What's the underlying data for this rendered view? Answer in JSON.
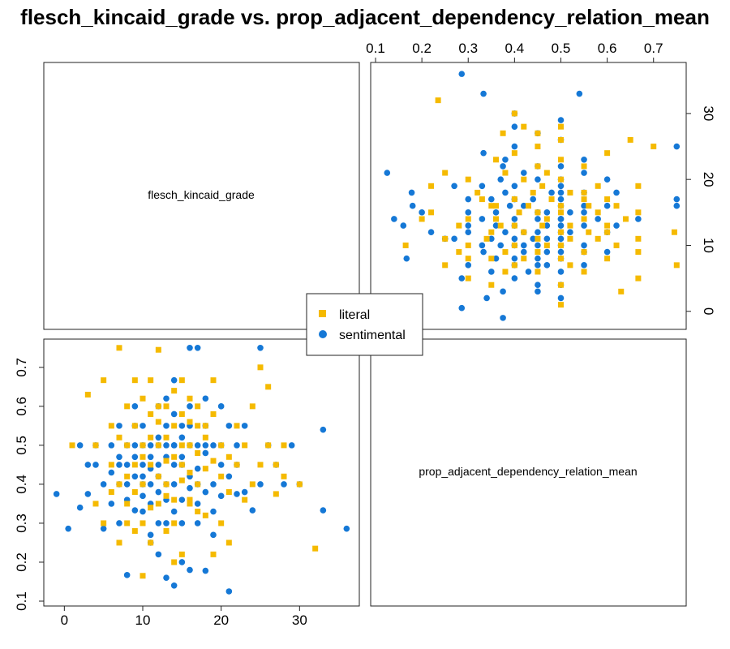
{
  "title": "flesch_kincaid_grade vs. prop_adjacent_dependency_relation_mean",
  "colors": {
    "literal": "#F5BA00",
    "sentimental": "#1578D6",
    "axis": "#222222"
  },
  "legend": {
    "items": [
      {
        "label": "literal",
        "marker": "square-marker",
        "color": "#F5BA00"
      },
      {
        "label": "sentimental",
        "marker": "circle-marker",
        "color": "#1578D6"
      }
    ]
  },
  "panels": {
    "diag1_label": "flesch_kincaid_grade",
    "diag2_label": "prop_adjacent_dependency_relation_mean"
  },
  "chart_data": {
    "type": "scatter",
    "title": "flesch_kincaid_grade vs. prop_adjacent_dependency_relation_mean",
    "variables": [
      "flesch_kincaid_grade",
      "prop_adjacent_dependency_relation_mean"
    ],
    "ranges": {
      "flesch_kincaid_grade": [
        -2,
        37
      ],
      "prop_adjacent_dependency_relation_mean": [
        0.1,
        0.76
      ]
    },
    "ticks": {
      "flesch_kincaid_grade": [
        0,
        10,
        20,
        30
      ],
      "prop_adjacent_dependency_relation_mean": [
        0.1,
        0.2,
        0.3,
        0.4,
        0.5,
        0.6,
        0.7
      ]
    },
    "grid": false,
    "legend_position": "center",
    "series": [
      {
        "name": "literal",
        "marker": "square",
        "points": [
          [
            32,
            0.235
          ],
          [
            30,
            0.4
          ],
          [
            28,
            0.5
          ],
          [
            27,
            0.375
          ],
          [
            27,
            0.45
          ],
          [
            26,
            0.65
          ],
          [
            25,
            0.7
          ],
          [
            24,
            0.6
          ],
          [
            23,
            0.5
          ],
          [
            22,
            0.45
          ],
          [
            21,
            0.25
          ],
          [
            20,
            0.3
          ],
          [
            19,
            0.667
          ],
          [
            19,
            0.22
          ],
          [
            18,
            0.55
          ],
          [
            17,
            0.6
          ],
          [
            17,
            0.4
          ],
          [
            16,
            0.35
          ],
          [
            16,
            0.5
          ],
          [
            15,
            0.45
          ],
          [
            15,
            0.667
          ],
          [
            14,
            0.55
          ],
          [
            14,
            0.3
          ],
          [
            13,
            0.4
          ],
          [
            13,
            0.6
          ],
          [
            12,
            0.5
          ],
          [
            12,
            0.35
          ],
          [
            11,
            0.45
          ],
          [
            11,
            0.667
          ],
          [
            11,
            0.25
          ],
          [
            10,
            0.5
          ],
          [
            10,
            0.4
          ],
          [
            10,
            0.3
          ],
          [
            9,
            0.55
          ],
          [
            9,
            0.45
          ],
          [
            9,
            0.667
          ],
          [
            8,
            0.35
          ],
          [
            8,
            0.5
          ],
          [
            8,
            0.6
          ],
          [
            7,
            0.75
          ],
          [
            7,
            0.4
          ],
          [
            7,
            0.25
          ],
          [
            6,
            0.55
          ],
          [
            6,
            0.45
          ],
          [
            5,
            0.667
          ],
          [
            5,
            0.3
          ],
          [
            4,
            0.5
          ],
          [
            4,
            0.35
          ],
          [
            3,
            0.63
          ],
          [
            1,
            0.5
          ],
          [
            12,
            0.745
          ],
          [
            15,
            0.22
          ],
          [
            10,
            0.165
          ],
          [
            14,
            0.2
          ],
          [
            18,
            0.32
          ],
          [
            16,
            0.62
          ],
          [
            13,
            0.52
          ],
          [
            17,
            0.48
          ],
          [
            20,
            0.42
          ],
          [
            22,
            0.55
          ],
          [
            24,
            0.4
          ],
          [
            19,
            0.58
          ],
          [
            21,
            0.38
          ],
          [
            11,
            0.58
          ],
          [
            13,
            0.28
          ],
          [
            15,
            0.5
          ],
          [
            12,
            0.42
          ],
          [
            14,
            0.47
          ],
          [
            16,
            0.43
          ],
          [
            18,
            0.52
          ],
          [
            9,
            0.38
          ],
          [
            10,
            0.62
          ],
          [
            8,
            0.42
          ],
          [
            7,
            0.52
          ],
          [
            6,
            0.38
          ],
          [
            17,
            0.55
          ],
          [
            19,
            0.46
          ],
          [
            20,
            0.5
          ],
          [
            12,
            0.6
          ],
          [
            14,
            0.64
          ],
          [
            13,
            0.46
          ],
          [
            15,
            0.41
          ],
          [
            11,
            0.34
          ],
          [
            16,
            0.36
          ],
          [
            10,
            0.47
          ],
          [
            18,
            0.44
          ],
          [
            9,
            0.28
          ],
          [
            8,
            0.3
          ],
          [
            21,
            0.47
          ],
          [
            23,
            0.36
          ],
          [
            25,
            0.45
          ],
          [
            26,
            0.5
          ],
          [
            28,
            0.42
          ],
          [
            14,
            0.36
          ],
          [
            12,
            0.56
          ],
          [
            16,
            0.56
          ],
          [
            11,
            0.52
          ],
          [
            13,
            0.37
          ],
          [
            15,
            0.58
          ],
          [
            17,
            0.33
          ]
        ]
      },
      {
        "name": "sentimental",
        "marker": "circle",
        "points": [
          [
            36,
            0.286
          ],
          [
            33,
            0.54
          ],
          [
            33,
            0.333
          ],
          [
            30,
            0.4
          ],
          [
            29,
            0.5
          ],
          [
            28,
            0.4
          ],
          [
            27,
            0.45
          ],
          [
            26,
            0.5
          ],
          [
            25,
            0.75
          ],
          [
            25,
            0.4
          ],
          [
            24,
            0.333
          ],
          [
            23,
            0.55
          ],
          [
            22,
            0.5
          ],
          [
            22,
            0.375
          ],
          [
            21,
            0.125
          ],
          [
            20,
            0.6
          ],
          [
            20,
            0.45
          ],
          [
            19,
            0.5
          ],
          [
            19,
            0.4
          ],
          [
            18,
            0.178
          ],
          [
            18,
            0.55
          ],
          [
            17,
            0.75
          ],
          [
            17,
            0.35
          ],
          [
            16,
            0.5
          ],
          [
            16,
            0.75
          ],
          [
            16,
            0.6
          ],
          [
            15,
            0.45
          ],
          [
            15,
            0.3
          ],
          [
            14,
            0.14
          ],
          [
            14,
            0.667
          ],
          [
            14,
            0.5
          ],
          [
            13,
            0.4
          ],
          [
            13,
            0.55
          ],
          [
            13,
            0.3
          ],
          [
            12,
            0.5
          ],
          [
            12,
            0.45
          ],
          [
            12,
            0.6
          ],
          [
            11,
            0.35
          ],
          [
            11,
            0.5
          ],
          [
            11,
            0.25
          ],
          [
            10,
            0.4
          ],
          [
            10,
            0.55
          ],
          [
            10,
            0.45
          ],
          [
            9,
            0.5
          ],
          [
            9,
            0.333
          ],
          [
            9,
            0.6
          ],
          [
            8,
            0.167
          ],
          [
            8,
            0.4
          ],
          [
            8,
            0.5
          ],
          [
            7,
            0.45
          ],
          [
            7,
            0.3
          ],
          [
            7,
            0.55
          ],
          [
            6,
            0.5
          ],
          [
            6,
            0.35
          ],
          [
            5,
            0.4
          ],
          [
            5,
            0.286
          ],
          [
            4,
            0.45
          ],
          [
            4,
            0.5
          ],
          [
            3,
            0.375
          ],
          [
            2,
            0.34
          ],
          [
            -1,
            0.375
          ],
          [
            0.5,
            0.286
          ],
          [
            2,
            0.5
          ],
          [
            3,
            0.45
          ],
          [
            15,
            0.2
          ],
          [
            13,
            0.16
          ],
          [
            16,
            0.18
          ],
          [
            12,
            0.22
          ],
          [
            11,
            0.27
          ],
          [
            19,
            0.27
          ],
          [
            17,
            0.3
          ],
          [
            14,
            0.4
          ],
          [
            13,
            0.47
          ],
          [
            15,
            0.52
          ],
          [
            16,
            0.42
          ],
          [
            18,
            0.48
          ],
          [
            12,
            0.38
          ],
          [
            10,
            0.33
          ],
          [
            9,
            0.42
          ],
          [
            8,
            0.36
          ],
          [
            7,
            0.47
          ],
          [
            6,
            0.43
          ],
          [
            14,
            0.58
          ],
          [
            15,
            0.36
          ],
          [
            17,
            0.44
          ],
          [
            18,
            0.38
          ],
          [
            20,
            0.5
          ],
          [
            21,
            0.42
          ],
          [
            22,
            0.45
          ],
          [
            23,
            0.38
          ],
          [
            12,
            0.52
          ],
          [
            13,
            0.36
          ],
          [
            11,
            0.44
          ],
          [
            10,
            0.5
          ],
          [
            9,
            0.47
          ],
          [
            14,
            0.33
          ],
          [
            16,
            0.55
          ],
          [
            17,
            0.5
          ],
          [
            18,
            0.62
          ],
          [
            19,
            0.33
          ],
          [
            20,
            0.37
          ],
          [
            21,
            0.55
          ],
          [
            13,
            0.62
          ],
          [
            12,
            0.3
          ],
          [
            11,
            0.4
          ],
          [
            10,
            0.37
          ],
          [
            15,
            0.47
          ],
          [
            16,
            0.39
          ],
          [
            14,
            0.45
          ],
          [
            13,
            0.5
          ],
          [
            12,
            0.42
          ],
          [
            11,
            0.47
          ],
          [
            10,
            0.42
          ],
          [
            17,
            0.4
          ],
          [
            18,
            0.5
          ],
          [
            8,
            0.45
          ],
          [
            7,
            0.4
          ],
          [
            9,
            0.55
          ],
          [
            15,
            0.55
          ],
          [
            14,
            0.5
          ]
        ]
      }
    ]
  }
}
